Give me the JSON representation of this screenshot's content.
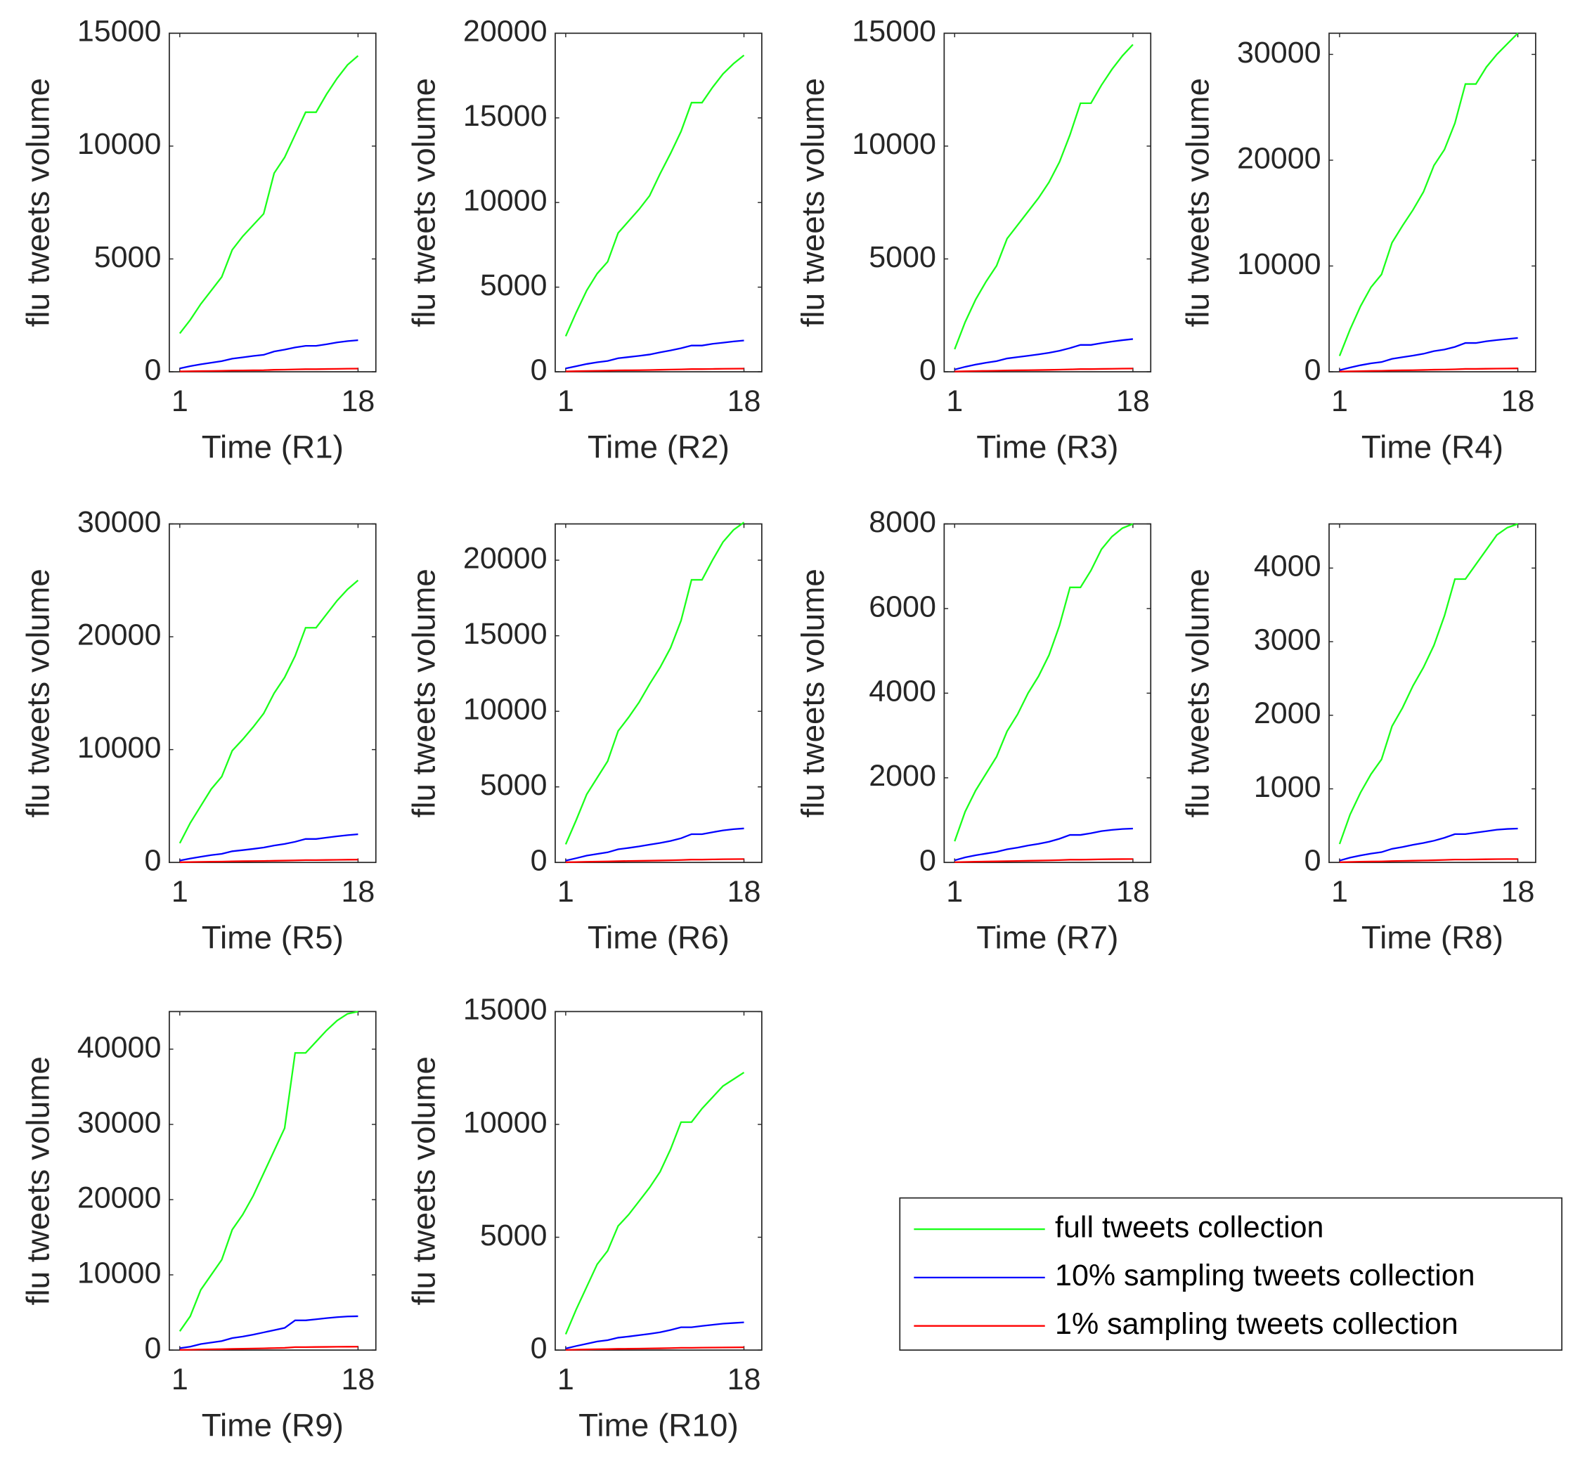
{
  "legend": [
    {
      "name": "full tweets collection",
      "color": "#1aff1a"
    },
    {
      "name": "10% sampling tweets collection",
      "color": "#0000ff"
    },
    {
      "name": "1% sampling tweets collection",
      "color": "#ff0000"
    }
  ],
  "chart_data": [
    {
      "type": "line",
      "xlabel": "Time (R1)",
      "ylabel": "flu tweets volume",
      "x": [
        1,
        2,
        3,
        4,
        5,
        6,
        7,
        8,
        9,
        10,
        11,
        12,
        13,
        14,
        15,
        16,
        17,
        18
      ],
      "xlim": [
        0,
        19.7
      ],
      "xticks": [
        1,
        18
      ],
      "ylim": [
        0,
        15000
      ],
      "yticks": [
        0,
        5000,
        10000,
        15000
      ],
      "series": [
        {
          "values": [
            1700,
            2300,
            3000,
            3600,
            4200,
            5400,
            6000,
            6500,
            7000,
            8800,
            9500,
            10500,
            11500,
            11500,
            12300,
            13000,
            13600,
            14000
          ]
        },
        {
          "values": [
            150,
            250,
            330,
            400,
            470,
            580,
            640,
            700,
            750,
            900,
            980,
            1080,
            1150,
            1150,
            1220,
            1300,
            1360,
            1400
          ]
        },
        {
          "values": [
            15,
            23,
            30,
            36,
            42,
            54,
            60,
            65,
            70,
            88,
            95,
            105,
            115,
            115,
            123,
            130,
            136,
            140
          ]
        }
      ]
    },
    {
      "type": "line",
      "xlabel": "Time (R2)",
      "ylabel": "flu tweets volume",
      "x": [
        1,
        2,
        3,
        4,
        5,
        6,
        7,
        8,
        9,
        10,
        11,
        12,
        13,
        14,
        15,
        16,
        17,
        18
      ],
      "xlim": [
        0,
        19.7
      ],
      "xticks": [
        1,
        18
      ],
      "ylim": [
        0,
        20000
      ],
      "yticks": [
        0,
        5000,
        10000,
        15000,
        20000
      ],
      "series": [
        {
          "values": [
            2100,
            3500,
            4800,
            5800,
            6500,
            8200,
            8900,
            9600,
            10400,
            11700,
            12900,
            14200,
            15900,
            15900,
            16800,
            17600,
            18200,
            18700
          ]
        },
        {
          "values": [
            200,
            330,
            460,
            560,
            640,
            800,
            870,
            940,
            1020,
            1150,
            1260,
            1390,
            1550,
            1550,
            1650,
            1720,
            1790,
            1850
          ]
        },
        {
          "values": [
            20,
            35,
            48,
            58,
            65,
            82,
            89,
            96,
            104,
            117,
            129,
            142,
            159,
            159,
            168,
            176,
            182,
            187
          ]
        }
      ]
    },
    {
      "type": "line",
      "xlabel": "Time (R3)",
      "ylabel": "flu tweets volume",
      "x": [
        1,
        2,
        3,
        4,
        5,
        6,
        7,
        8,
        9,
        10,
        11,
        12,
        13,
        14,
        15,
        16,
        17,
        18
      ],
      "xlim": [
        0,
        19.7
      ],
      "xticks": [
        1,
        18
      ],
      "ylim": [
        0,
        15000
      ],
      "yticks": [
        0,
        5000,
        10000,
        15000
      ],
      "series": [
        {
          "values": [
            1000,
            2200,
            3200,
            4000,
            4700,
            5900,
            6500,
            7100,
            7700,
            8400,
            9300,
            10500,
            11900,
            11900,
            12700,
            13400,
            14000,
            14500
          ]
        },
        {
          "values": [
            100,
            220,
            320,
            400,
            470,
            590,
            650,
            710,
            770,
            840,
            930,
            1050,
            1190,
            1190,
            1270,
            1340,
            1400,
            1450
          ]
        },
        {
          "values": [
            10,
            22,
            32,
            40,
            47,
            59,
            65,
            71,
            77,
            84,
            93,
            105,
            119,
            119,
            127,
            134,
            140,
            145
          ]
        }
      ]
    },
    {
      "type": "line",
      "xlabel": "Time (R4)",
      "ylabel": "flu tweets volume",
      "x": [
        1,
        2,
        3,
        4,
        5,
        6,
        7,
        8,
        9,
        10,
        11,
        12,
        13,
        14,
        15,
        16,
        17,
        18
      ],
      "xlim": [
        0,
        19.7
      ],
      "xticks": [
        1,
        18
      ],
      "ylim": [
        0,
        32000
      ],
      "yticks": [
        0,
        10000,
        20000,
        30000
      ],
      "series": [
        {
          "values": [
            1500,
            4000,
            6200,
            8000,
            9200,
            12200,
            13800,
            15300,
            17000,
            19500,
            21000,
            23500,
            27200,
            27200,
            28800,
            30000,
            31000,
            32000
          ]
        },
        {
          "values": [
            150,
            400,
            620,
            800,
            920,
            1220,
            1380,
            1530,
            1700,
            1950,
            2100,
            2350,
            2720,
            2720,
            2880,
            3000,
            3100,
            3200
          ]
        },
        {
          "values": [
            15,
            40,
            62,
            80,
            92,
            122,
            138,
            153,
            170,
            195,
            210,
            235,
            272,
            272,
            288,
            300,
            310,
            320
          ]
        }
      ]
    },
    {
      "type": "line",
      "xlabel": "Time (R5)",
      "ylabel": "flu tweets volume",
      "x": [
        1,
        2,
        3,
        4,
        5,
        6,
        7,
        8,
        9,
        10,
        11,
        12,
        13,
        14,
        15,
        16,
        17,
        18
      ],
      "xlim": [
        0,
        19.7
      ],
      "xticks": [
        1,
        18
      ],
      "ylim": [
        0,
        30000
      ],
      "yticks": [
        0,
        10000,
        20000,
        30000
      ],
      "series": [
        {
          "values": [
            1700,
            3500,
            5000,
            6500,
            7600,
            9900,
            10900,
            12000,
            13200,
            15000,
            16400,
            18300,
            20800,
            20800,
            22000,
            23200,
            24200,
            25000
          ]
        },
        {
          "values": [
            170,
            350,
            500,
            650,
            760,
            990,
            1090,
            1200,
            1320,
            1500,
            1640,
            1830,
            2080,
            2080,
            2200,
            2320,
            2420,
            2500
          ]
        },
        {
          "values": [
            17,
            35,
            50,
            65,
            76,
            99,
            109,
            120,
            132,
            150,
            164,
            183,
            208,
            208,
            220,
            232,
            242,
            250
          ]
        }
      ]
    },
    {
      "type": "line",
      "xlabel": "Time (R6)",
      "ylabel": "flu tweets volume",
      "x": [
        1,
        2,
        3,
        4,
        5,
        6,
        7,
        8,
        9,
        10,
        11,
        12,
        13,
        14,
        15,
        16,
        17,
        18
      ],
      "xlim": [
        0,
        19.7
      ],
      "xticks": [
        1,
        18
      ],
      "ylim": [
        0,
        22400
      ],
      "yticks": [
        0,
        5000,
        10000,
        15000,
        20000
      ],
      "series": [
        {
          "values": [
            1200,
            2800,
            4500,
            5600,
            6700,
            8700,
            9600,
            10600,
            11800,
            12900,
            14200,
            16000,
            18700,
            18700,
            20000,
            21200,
            22000,
            22500
          ]
        },
        {
          "values": [
            120,
            280,
            450,
            560,
            670,
            870,
            960,
            1060,
            1180,
            1290,
            1420,
            1600,
            1870,
            1870,
            2000,
            2120,
            2200,
            2250
          ]
        },
        {
          "values": [
            12,
            28,
            45,
            56,
            67,
            87,
            96,
            106,
            118,
            129,
            142,
            160,
            187,
            187,
            200,
            212,
            220,
            225
          ]
        }
      ]
    },
    {
      "type": "line",
      "xlabel": "Time (R7)",
      "ylabel": "flu tweets volume",
      "x": [
        1,
        2,
        3,
        4,
        5,
        6,
        7,
        8,
        9,
        10,
        11,
        12,
        13,
        14,
        15,
        16,
        17,
        18
      ],
      "xlim": [
        0,
        19.7
      ],
      "xticks": [
        1,
        18
      ],
      "ylim": [
        0,
        8000
      ],
      "yticks": [
        0,
        2000,
        4000,
        6000,
        8000
      ],
      "series": [
        {
          "values": [
            500,
            1200,
            1700,
            2100,
            2500,
            3100,
            3500,
            4000,
            4400,
            4900,
            5600,
            6500,
            6500,
            6900,
            7400,
            7700,
            7900,
            8000
          ]
        },
        {
          "values": [
            50,
            120,
            170,
            210,
            250,
            310,
            350,
            400,
            440,
            490,
            560,
            650,
            650,
            690,
            740,
            770,
            790,
            800
          ]
        },
        {
          "values": [
            5,
            12,
            17,
            21,
            25,
            31,
            35,
            40,
            44,
            49,
            56,
            65,
            65,
            69,
            74,
            77,
            79,
            80
          ]
        }
      ]
    },
    {
      "type": "line",
      "xlabel": "Time (R8)",
      "ylabel": "flu tweets volume",
      "x": [
        1,
        2,
        3,
        4,
        5,
        6,
        7,
        8,
        9,
        10,
        11,
        12,
        13,
        14,
        15,
        16,
        17,
        18
      ],
      "xlim": [
        0,
        19.7
      ],
      "xticks": [
        1,
        18
      ],
      "ylim": [
        0,
        4600
      ],
      "yticks": [
        0,
        1000,
        2000,
        3000,
        4000
      ],
      "series": [
        {
          "values": [
            250,
            650,
            950,
            1200,
            1400,
            1850,
            2100,
            2400,
            2650,
            2950,
            3350,
            3850,
            3850,
            4050,
            4250,
            4450,
            4550,
            4600
          ]
        },
        {
          "values": [
            25,
            65,
            95,
            120,
            140,
            185,
            210,
            240,
            265,
            295,
            335,
            385,
            385,
            405,
            425,
            445,
            455,
            460
          ]
        },
        {
          "values": [
            3,
            7,
            10,
            12,
            14,
            19,
            21,
            24,
            27,
            30,
            34,
            39,
            39,
            41,
            43,
            45,
            46,
            46
          ]
        }
      ]
    },
    {
      "type": "line",
      "xlabel": "Time (R9)",
      "ylabel": "flu tweets volume",
      "x": [
        1,
        2,
        3,
        4,
        5,
        6,
        7,
        8,
        9,
        10,
        11,
        12,
        13,
        14,
        15,
        16,
        17,
        18
      ],
      "xlim": [
        0,
        19.7
      ],
      "xticks": [
        1,
        18
      ],
      "ylim": [
        0,
        45000
      ],
      "yticks": [
        0,
        10000,
        20000,
        30000,
        40000
      ],
      "series": [
        {
          "values": [
            2500,
            4500,
            8000,
            10000,
            12000,
            16000,
            18000,
            20500,
            23500,
            26500,
            29500,
            39500,
            39500,
            41000,
            42500,
            43800,
            44700,
            45000
          ]
        },
        {
          "values": [
            250,
            450,
            800,
            1000,
            1200,
            1600,
            1800,
            2050,
            2350,
            2650,
            2950,
            3950,
            3950,
            4100,
            4250,
            4380,
            4470,
            4500
          ]
        },
        {
          "values": [
            25,
            45,
            80,
            100,
            120,
            160,
            180,
            205,
            235,
            265,
            295,
            395,
            395,
            410,
            425,
            438,
            447,
            450
          ]
        }
      ]
    },
    {
      "type": "line",
      "xlabel": "Time (R10)",
      "ylabel": "flu tweets volume",
      "x": [
        1,
        2,
        3,
        4,
        5,
        6,
        7,
        8,
        9,
        10,
        11,
        12,
        13,
        14,
        15,
        16,
        17,
        18
      ],
      "xlim": [
        0,
        19.7
      ],
      "xticks": [
        1,
        18
      ],
      "ylim": [
        0,
        15000
      ],
      "yticks": [
        0,
        5000,
        10000,
        15000
      ],
      "series": [
        {
          "values": [
            700,
            1800,
            2800,
            3800,
            4400,
            5500,
            6000,
            6600,
            7200,
            7900,
            8900,
            10100,
            10100,
            10700,
            11200,
            11700,
            12000,
            12300
          ]
        },
        {
          "values": [
            70,
            180,
            280,
            380,
            440,
            550,
            600,
            660,
            720,
            790,
            890,
            1010,
            1010,
            1070,
            1120,
            1170,
            1200,
            1230
          ]
        },
        {
          "values": [
            7,
            18,
            28,
            38,
            44,
            55,
            60,
            66,
            72,
            79,
            89,
            101,
            101,
            107,
            112,
            117,
            120,
            123
          ]
        }
      ]
    }
  ]
}
